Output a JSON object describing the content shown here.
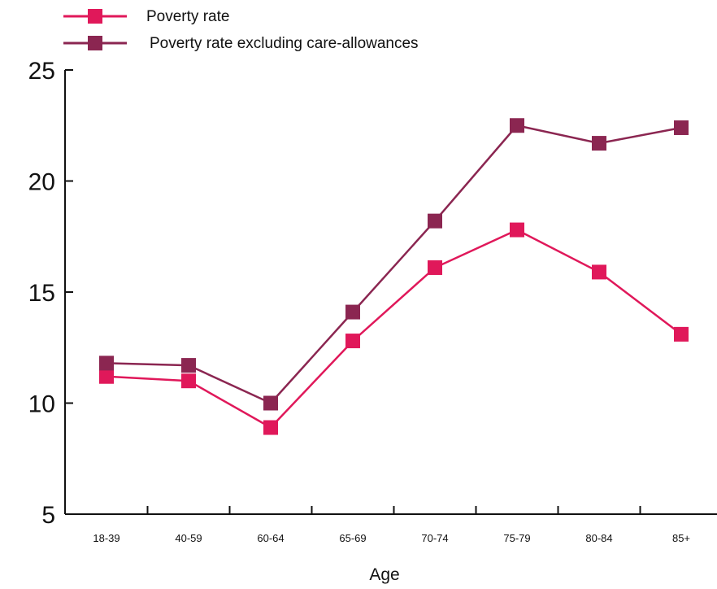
{
  "chart_data": {
    "type": "line",
    "title": "",
    "xlabel": "Age",
    "ylabel": "",
    "categories": [
      "18-39",
      "40-59",
      "60-64",
      "65-69",
      "70-74",
      "75-79",
      "80-84",
      "85+"
    ],
    "ylim": [
      5,
      25
    ],
    "yticks": [
      5,
      10,
      15,
      20,
      25
    ],
    "grid": false,
    "legend_position": "top-left",
    "series": [
      {
        "name": "Poverty rate",
        "color": "#e0185a",
        "marker": "square",
        "values": [
          11.2,
          11.0,
          8.9,
          12.8,
          16.1,
          17.8,
          15.9,
          13.1
        ]
      },
      {
        "name": "Poverty rate excluding care-allowances",
        "color": "#8b2651",
        "marker": "square",
        "values": [
          11.8,
          11.7,
          10.0,
          14.1,
          18.2,
          22.5,
          21.7,
          22.4
        ]
      }
    ]
  }
}
